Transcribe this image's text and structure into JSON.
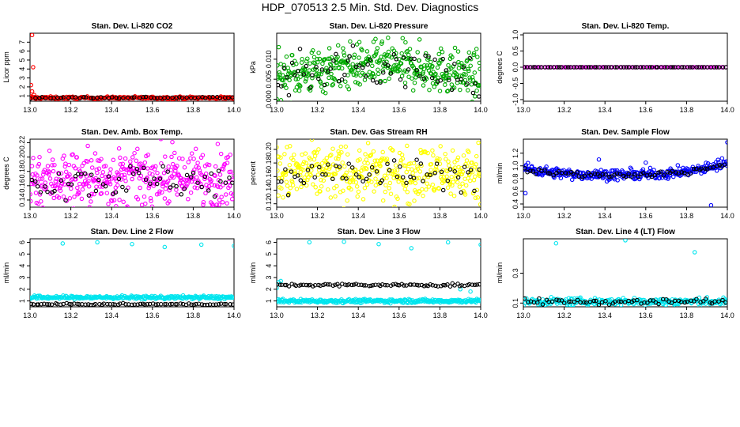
{
  "title": "HDP_070513  2.5 Min. Std. Dev. Diagnostics",
  "chart_data": [
    {
      "type": "scatter",
      "title": "Stan. Dev. Li-820 CO2",
      "ylabel": "Licor ppm",
      "xlabel": "",
      "xlim": [
        13.0,
        14.0
      ],
      "ylim": [
        0.4,
        8.0
      ],
      "xticks": [
        "13.0",
        "13.2",
        "13.4",
        "13.6",
        "13.8",
        "14.0"
      ],
      "yticks": [
        {
          "v": 1,
          "t": "1"
        },
        {
          "v": 2,
          "t": "2"
        },
        {
          "v": 3,
          "t": "3"
        },
        {
          "v": 4,
          "t": "4"
        },
        {
          "v": 5,
          "t": "5"
        },
        {
          "v": 6,
          "t": "6"
        },
        {
          "v": 7,
          "t": "7"
        }
      ],
      "series": [
        {
          "name": "colored",
          "color": "#ff0000",
          "n": 230,
          "base": 0.78,
          "noise": 0.07,
          "extra": [
            [
              13.01,
              7.8
            ],
            [
              13.015,
              4.2
            ],
            [
              13.005,
              2.2
            ],
            [
              13.01,
              1.5
            ],
            [
              13.02,
              1.1
            ],
            [
              13.0,
              1.0
            ]
          ]
        },
        {
          "name": "black",
          "color": "#000000",
          "n": 55,
          "base": 0.8,
          "noise": 0.05
        }
      ]
    },
    {
      "type": "scatter",
      "title": "Stan. Dev. Li-820 Pressure",
      "ylabel": "kPa",
      "xlabel": "",
      "xlim": [
        13.0,
        14.0
      ],
      "ylim": [
        -0.0005,
        0.0165
      ],
      "xticks": [
        "13.0",
        "13.2",
        "13.4",
        "13.6",
        "13.8",
        "14.0"
      ],
      "yticks": [
        {
          "v": 0.0,
          "t": "0.000"
        },
        {
          "v": 0.005,
          "t": "0.005"
        },
        {
          "v": 0.01,
          "t": "0.010"
        }
      ],
      "series": [
        {
          "name": "colored",
          "color": "#00aa00",
          "n": 420,
          "base": 0.0055,
          "noise": 0.0028,
          "hump": 0.003
        },
        {
          "name": "black",
          "color": "#000000",
          "n": 70,
          "base": 0.0055,
          "noise": 0.0025,
          "hump": 0.0025
        }
      ]
    },
    {
      "type": "scatter",
      "title": "Stan. Dev. Li-820 Temp.",
      "ylabel": "degrees C",
      "xlabel": "",
      "xlim": [
        13.0,
        14.0
      ],
      "ylim": [
        -1.05,
        1.05
      ],
      "xticks": [
        "13.0",
        "13.2",
        "13.4",
        "13.6",
        "13.8",
        "14.0"
      ],
      "yticks": [
        {
          "v": -1.0,
          "t": "-1.0"
        },
        {
          "v": -0.5,
          "t": "-0.5"
        },
        {
          "v": 0.0,
          "t": "0.0"
        },
        {
          "v": 0.5,
          "t": "0.5"
        },
        {
          "v": 1.0,
          "t": "1.0"
        }
      ],
      "series": [
        {
          "name": "colored",
          "color": "#ff00ff",
          "n": 90,
          "base": 0.0,
          "noise": 0.0
        },
        {
          "name": "black",
          "color": "#000000",
          "n": 70,
          "base": 0.0,
          "noise": 0.0
        }
      ]
    },
    {
      "type": "scatter",
      "title": "Stan. Dev. Amb. Box Temp.",
      "ylabel": "degrees C",
      "xlabel": "",
      "xlim": [
        13.0,
        14.0
      ],
      "ylim": [
        0.13,
        0.225
      ],
      "xticks": [
        "13.0",
        "13.2",
        "13.4",
        "13.6",
        "13.8",
        "14.0"
      ],
      "yticks": [
        {
          "v": 0.14,
          "t": "0.14"
        },
        {
          "v": 0.16,
          "t": "0.16"
        },
        {
          "v": 0.18,
          "t": "0.18"
        },
        {
          "v": 0.2,
          "t": "0.20"
        },
        {
          "v": 0.22,
          "t": "0.22"
        }
      ],
      "series": [
        {
          "name": "colored",
          "color": "#ff00ff",
          "n": 420,
          "base": 0.17,
          "noise": 0.02
        },
        {
          "name": "black",
          "color": "#000000",
          "n": 60,
          "base": 0.168,
          "noise": 0.012
        }
      ]
    },
    {
      "type": "scatter",
      "title": "Stan. Dev. Gas Stream RH",
      "ylabel": "percent",
      "xlabel": "",
      "xlim": [
        13.0,
        14.0
      ],
      "ylim": [
        0.115,
        0.215
      ],
      "xticks": [
        "13.0",
        "13.2",
        "13.4",
        "13.6",
        "13.8",
        "14.0"
      ],
      "yticks": [
        {
          "v": 0.12,
          "t": "0.12"
        },
        {
          "v": 0.14,
          "t": "0.14"
        },
        {
          "v": 0.16,
          "t": "0.16"
        },
        {
          "v": 0.18,
          "t": "0.18"
        },
        {
          "v": 0.2,
          "t": "0.20"
        }
      ],
      "series": [
        {
          "name": "colored",
          "color": "#ffff00",
          "n": 420,
          "base": 0.165,
          "noise": 0.02
        },
        {
          "name": "black",
          "color": "#000000",
          "n": 60,
          "base": 0.163,
          "noise": 0.012
        }
      ]
    },
    {
      "type": "scatter",
      "title": "Stan. Dev. Sample Flow",
      "ylabel": "ml/min",
      "xlabel": "",
      "xlim": [
        13.0,
        14.0
      ],
      "ylim": [
        0.35,
        1.42
      ],
      "xticks": [
        "13.0",
        "13.2",
        "13.4",
        "13.6",
        "13.8",
        "14.0"
      ],
      "yticks": [
        {
          "v": 0.4,
          "t": "0.4"
        },
        {
          "v": 0.6,
          "t": "0.6"
        },
        {
          "v": 0.8,
          "t": "0.8"
        },
        {
          "v": 1.0,
          "t": "1.0"
        },
        {
          "v": 1.2,
          "t": "1.2"
        }
      ],
      "series": [
        {
          "name": "colored",
          "color": "#0000ff",
          "n": 340,
          "base": 0.86,
          "noise": 0.04,
          "ushape": 0.15,
          "extra": [
            [
              13.01,
              0.57
            ],
            [
              13.92,
              0.38
            ],
            [
              14.0,
              1.37
            ],
            [
              13.37,
              1.1
            ],
            [
              13.6,
              1.05
            ]
          ]
        },
        {
          "name": "black",
          "color": "#000000",
          "n": 70,
          "base": 0.86,
          "noise": 0.025,
          "ushape": 0.14
        }
      ]
    },
    {
      "type": "scatter",
      "title": "Stan. Dev. Line 2 Flow",
      "ylabel": "ml/min",
      "xlabel": "",
      "xlim": [
        13.0,
        14.0
      ],
      "ylim": [
        0.5,
        6.3
      ],
      "xticks": [
        "13.0",
        "13.2",
        "13.4",
        "13.6",
        "13.8",
        "14.0"
      ],
      "yticks": [
        {
          "v": 1,
          "t": "1"
        },
        {
          "v": 2,
          "t": "2"
        },
        {
          "v": 3,
          "t": "3"
        },
        {
          "v": 4,
          "t": "4"
        },
        {
          "v": 5,
          "t": "5"
        },
        {
          "v": 6,
          "t": "6"
        }
      ],
      "series": [
        {
          "name": "colored",
          "color": "#00e5ee",
          "n": 280,
          "base": 1.3,
          "noise": 0.07,
          "extra": [
            [
              13.16,
              5.9
            ],
            [
              13.33,
              6.0
            ],
            [
              13.5,
              5.85
            ],
            [
              13.66,
              5.6
            ],
            [
              13.84,
              5.8
            ],
            [
              14.0,
              5.7
            ]
          ]
        },
        {
          "name": "black",
          "color": "#000000",
          "n": 75,
          "base": 0.72,
          "noise": 0.03
        }
      ]
    },
    {
      "type": "scatter",
      "title": "Stan. Dev. Line 3 Flow",
      "ylabel": "ml/min",
      "xlabel": "",
      "xlim": [
        13.0,
        14.0
      ],
      "ylim": [
        0.5,
        6.3
      ],
      "xticks": [
        "13.0",
        "13.2",
        "13.4",
        "13.6",
        "13.8",
        "14.0"
      ],
      "yticks": [
        {
          "v": 1,
          "t": "1"
        },
        {
          "v": 2,
          "t": "2"
        },
        {
          "v": 3,
          "t": "3"
        },
        {
          "v": 4,
          "t": "4"
        },
        {
          "v": 5,
          "t": "5"
        },
        {
          "v": 6,
          "t": "6"
        }
      ],
      "series": [
        {
          "name": "colored",
          "color": "#00e5ee",
          "n": 300,
          "base": 1.0,
          "noise": 0.08,
          "extra": [
            [
              13.16,
              6.0
            ],
            [
              13.33,
              6.05
            ],
            [
              13.5,
              5.85
            ],
            [
              13.66,
              5.5
            ],
            [
              13.84,
              6.0
            ],
            [
              14.0,
              5.8
            ],
            [
              13.0,
              2.1
            ],
            [
              13.01,
              2.6
            ],
            [
              13.02,
              2.7
            ],
            [
              13.9,
              2.0
            ],
            [
              13.95,
              1.8
            ]
          ]
        },
        {
          "name": "black",
          "color": "#000000",
          "n": 85,
          "base": 2.35,
          "noise": 0.06
        }
      ]
    },
    {
      "type": "scatter",
      "title": "Stan. Dev. Line 4 (LT) Flow",
      "ylabel": "ml/min",
      "xlabel": "",
      "xlim": [
        13.0,
        14.0
      ],
      "ylim": [
        0.075,
        0.53
      ],
      "xticks": [
        "13.0",
        "13.2",
        "13.4",
        "13.6",
        "13.8",
        "14.0"
      ],
      "yticks": [
        {
          "v": 0.1,
          "t": "0.1"
        },
        {
          "v": 0.3,
          "t": "0.3"
        }
      ],
      "series": [
        {
          "name": "colored",
          "color": "#00e5ee",
          "n": 280,
          "base": 0.11,
          "noise": 0.012,
          "extra": [
            [
              13.16,
              0.5
            ],
            [
              13.5,
              0.52
            ],
            [
              13.84,
              0.44
            ]
          ]
        },
        {
          "name": "black",
          "color": "#000000",
          "n": 65,
          "base": 0.11,
          "noise": 0.01
        }
      ]
    }
  ]
}
